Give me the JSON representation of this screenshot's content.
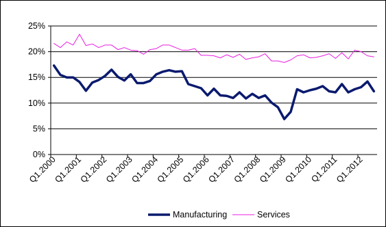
{
  "chart_data": {
    "type": "line",
    "title": "",
    "xlabel": "",
    "ylabel": "",
    "ylim": [
      0,
      25
    ],
    "y_ticks": [
      "0%",
      "5%",
      "10%",
      "15%",
      "20%",
      "25%"
    ],
    "y_tick_values": [
      0,
      5,
      10,
      15,
      20,
      25
    ],
    "x": [
      "Q1.2000",
      "Q2.2000",
      "Q3.2000",
      "Q4.2000",
      "Q1.2001",
      "Q2.2001",
      "Q3.2001",
      "Q4.2001",
      "Q1.2002",
      "Q2.2002",
      "Q3.2002",
      "Q4.2002",
      "Q1.2003",
      "Q2.2003",
      "Q3.2003",
      "Q4.2003",
      "Q1.2004",
      "Q2.2004",
      "Q3.2004",
      "Q4.2004",
      "Q1.2005",
      "Q2.2005",
      "Q3.2005",
      "Q4.2005",
      "Q1.2006",
      "Q2.2006",
      "Q3.2006",
      "Q4.2006",
      "Q1.2007",
      "Q2.2007",
      "Q3.2007",
      "Q4.2007",
      "Q1.2008",
      "Q2.2008",
      "Q3.2008",
      "Q4.2008",
      "Q1.2009",
      "Q2.2009",
      "Q3.2009",
      "Q4.2009",
      "Q1.2010",
      "Q2.2010",
      "Q3.2010",
      "Q4.2010",
      "Q1.2011",
      "Q2.2011",
      "Q3.2011",
      "Q4.2011",
      "Q1.2012",
      "Q2.2012",
      "Q3.2012"
    ],
    "x_tick_labels": [
      "Q1.2000",
      "Q1.2001",
      "Q1.2002",
      "Q1.2003",
      "Q1.2004",
      "Q1.2005",
      "Q1.2006",
      "Q1.2007",
      "Q1.2008",
      "Q1.2009",
      "Q1.2010",
      "Q1.2011",
      "Q1.2012"
    ],
    "grid": "horizontal",
    "legend_position": "bottom",
    "series": [
      {
        "name": "Manufacturing",
        "color": "#0a1a6e",
        "values": [
          17.3,
          15.5,
          15.0,
          15.0,
          14.1,
          12.4,
          14.0,
          14.5,
          15.3,
          16.5,
          15.1,
          14.4,
          15.6,
          13.9,
          13.9,
          14.3,
          15.6,
          16.1,
          16.4,
          16.1,
          16.2,
          13.7,
          13.3,
          12.9,
          11.5,
          12.8,
          11.5,
          11.4,
          11.0,
          12.1,
          10.9,
          11.8,
          11.0,
          11.5,
          10.1,
          9.2,
          6.9,
          8.3,
          12.7,
          12.1,
          12.5,
          12.8,
          13.3,
          12.3,
          12.1,
          13.7,
          12.1,
          12.7,
          13.1,
          14.2,
          12.3
        ]
      },
      {
        "name": "Services",
        "color": "#e81ee0",
        "values": [
          21.6,
          20.8,
          21.9,
          21.3,
          23.4,
          21.2,
          21.5,
          20.8,
          21.3,
          21.3,
          20.4,
          20.8,
          20.3,
          20.2,
          19.5,
          20.4,
          20.6,
          21.3,
          21.3,
          20.8,
          20.3,
          20.3,
          20.6,
          19.3,
          19.3,
          19.2,
          18.8,
          19.4,
          18.9,
          19.5,
          18.5,
          18.8,
          19.0,
          19.6,
          18.2,
          18.2,
          17.9,
          18.4,
          19.2,
          19.4,
          18.8,
          18.9,
          19.2,
          19.6,
          18.7,
          19.8,
          18.6,
          20.3,
          20.0,
          19.2,
          19.0
        ]
      }
    ]
  }
}
